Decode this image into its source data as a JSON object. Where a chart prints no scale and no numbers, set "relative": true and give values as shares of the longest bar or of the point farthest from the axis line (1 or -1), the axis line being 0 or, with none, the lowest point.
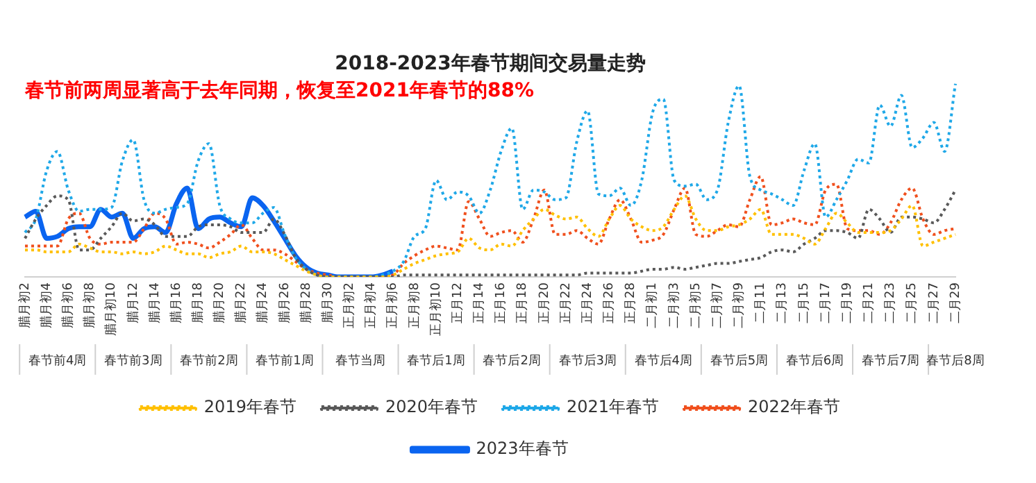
{
  "chart_data": {
    "type": "line",
    "title": "2018-2023年春节期间交易量走势",
    "subtitle": "春节前两周显著高于去年同期，恢复至2021年春节的88%",
    "relative": true,
    "legend": "bottom",
    "categories": [
      "腊月初2",
      null,
      "腊月初4",
      null,
      "腊月初6",
      null,
      "腊月初8",
      null,
      "腊月初10",
      null,
      "腊月12",
      null,
      "腊月14",
      null,
      "腊月16",
      null,
      "腊月18",
      null,
      "腊月20",
      null,
      "腊月22",
      null,
      "腊月24",
      null,
      "腊月26",
      null,
      "腊月28",
      null,
      "腊月30",
      null,
      "正月初2",
      null,
      "正月初4",
      null,
      "正月初6",
      null,
      "正月初8",
      null,
      "正月初10",
      null,
      "正月12",
      null,
      "正月14",
      null,
      "正月16",
      null,
      "正月18",
      null,
      "正月20",
      null,
      "正月22",
      null,
      "正月24",
      null,
      "正月26",
      null,
      "正月28",
      null,
      "二月初1",
      null,
      "二月初3",
      null,
      "二月初5",
      null,
      "二月初7",
      null,
      "二月初9",
      null,
      "二月11",
      null,
      "二月13",
      null,
      "二月15",
      null,
      "二月17",
      null,
      "二月19",
      null,
      "二月21",
      null,
      "二月23",
      null,
      "二月25",
      null,
      "二月27",
      null,
      "二月29"
    ],
    "annotations": [
      "春节前4周",
      "春节前3周",
      "春节前2周",
      "春节前1周",
      "春节当周",
      "春节后1周",
      "春节后2周",
      "春节后3周",
      "春节后4周",
      "春节后5周",
      "春节后6周",
      "春节后7周",
      "春节后8周"
    ],
    "series": [
      {
        "name": "2019年春节",
        "color": "#ffc000",
        "line_style": "dotted",
        "values": [
          0.14,
          0.14,
          0.13,
          0.13,
          0.13,
          0.17,
          0.15,
          0.13,
          0.13,
          0.12,
          0.13,
          0.12,
          0.13,
          0.16,
          0.14,
          0.12,
          0.12,
          0.1,
          0.12,
          0.13,
          0.16,
          0.13,
          0.13,
          0.12,
          0.09,
          0.06,
          0.03,
          0.01,
          0,
          0,
          0,
          0,
          0,
          0,
          0.01,
          0.04,
          0.07,
          0.09,
          0.11,
          0.12,
          0.13,
          0.2,
          0.15,
          0.14,
          0.17,
          0.16,
          0.24,
          0.3,
          0.35,
          0.32,
          0.3,
          0.31,
          0.25,
          0.21,
          0.3,
          0.37,
          0.3,
          0.26,
          0.24,
          0.26,
          0.35,
          0.42,
          0.3,
          0.24,
          0.24,
          0.26,
          0.27,
          0.3,
          0.35,
          0.22,
          0.22,
          0.22,
          0.2,
          0.17,
          0.25,
          0.33,
          0.28,
          0.23,
          0.23,
          0.23,
          0.24,
          0.3,
          0.37,
          0.16,
          0.18,
          0.2,
          0.22
        ]
      },
      {
        "name": "2020年春节",
        "color": "#595959",
        "line_style": "dotted",
        "values": [
          0.2,
          0.3,
          0.37,
          0.42,
          0.4,
          0.14,
          0.14,
          0.2,
          0.26,
          0.33,
          0.29,
          0.3,
          0.27,
          0.21,
          0.21,
          0.21,
          0.26,
          0.27,
          0.27,
          0.26,
          0.23,
          0.23,
          0.23,
          0.3,
          0.22,
          0.1,
          0.04,
          0.01,
          0,
          0,
          0,
          0,
          0,
          0,
          0,
          0.01,
          0.01,
          0.01,
          0.01,
          0.01,
          0.01,
          0.01,
          0.01,
          0.01,
          0.01,
          0.01,
          0.01,
          0.01,
          0.01,
          0.01,
          0.01,
          0.01,
          0.02,
          0.02,
          0.02,
          0.02,
          0.02,
          0.03,
          0.04,
          0.04,
          0.05,
          0.04,
          0.05,
          0.06,
          0.07,
          0.07,
          0.08,
          0.09,
          0.1,
          0.13,
          0.14,
          0.13,
          0.17,
          0.2,
          0.24,
          0.24,
          0.23,
          0.2,
          0.35,
          0.3,
          0.23,
          0.31,
          0.31,
          0.3,
          0.28,
          0.35,
          0.45
        ]
      },
      {
        "name": "2021年春节",
        "color": "#1fa8e8",
        "line_style": "dotted",
        "values": [
          0.23,
          0.3,
          0.55,
          0.65,
          0.45,
          0.34,
          0.35,
          0.35,
          0.36,
          0.6,
          0.71,
          0.4,
          0.33,
          0.35,
          0.36,
          0.38,
          0.6,
          0.69,
          0.37,
          0.3,
          0.28,
          0.28,
          0.33,
          0.36,
          0.22,
          0.1,
          0.04,
          0.01,
          0,
          0,
          0,
          0,
          0,
          0.01,
          0.03,
          0.08,
          0.21,
          0.25,
          0.5,
          0.4,
          0.44,
          0.42,
          0.33,
          0.45,
          0.65,
          0.77,
          0.35,
          0.45,
          0.44,
          0.4,
          0.41,
          0.7,
          0.86,
          0.43,
          0.42,
          0.46,
          0.37,
          0.5,
          0.85,
          0.92,
          0.5,
          0.47,
          0.48,
          0.4,
          0.45,
          0.8,
          0.99,
          0.52,
          0.45,
          0.43,
          0.4,
          0.37,
          0.55,
          0.69,
          0.31,
          0.4,
          0.5,
          0.61,
          0.59,
          0.89,
          0.78,
          0.94,
          0.67,
          0.72,
          0.8,
          0.65,
          1.0
        ]
      },
      {
        "name": "2022年春节",
        "color": "#f0501e",
        "line_style": "dotted",
        "values": [
          0.16,
          0.16,
          0.16,
          0.16,
          0.3,
          0.33,
          0.2,
          0.17,
          0.18,
          0.18,
          0.18,
          0.25,
          0.33,
          0.3,
          0.17,
          0.18,
          0.17,
          0.15,
          0.18,
          0.22,
          0.27,
          0.2,
          0.14,
          0.14,
          0.12,
          0.08,
          0.04,
          0.02,
          0.01,
          0,
          0,
          0,
          0,
          0,
          0.01,
          0.07,
          0.11,
          0.14,
          0.16,
          0.15,
          0.14,
          0.39,
          0.3,
          0.21,
          0.23,
          0.24,
          0.18,
          0.3,
          0.45,
          0.22,
          0.22,
          0.24,
          0.2,
          0.17,
          0.3,
          0.4,
          0.3,
          0.18,
          0.19,
          0.22,
          0.35,
          0.46,
          0.22,
          0.21,
          0.24,
          0.27,
          0.26,
          0.4,
          0.52,
          0.27,
          0.28,
          0.3,
          0.28,
          0.27,
          0.45,
          0.48,
          0.25,
          0.24,
          0.24,
          0.22,
          0.28,
          0.4,
          0.46,
          0.3,
          0.22,
          0.24,
          0.25
        ]
      },
      {
        "name": "2023年春节",
        "color": "#0a64f0",
        "line_style": "solid",
        "values": [
          0.31,
          0.34,
          0.2,
          0.21,
          0.25,
          0.26,
          0.26,
          0.35,
          0.31,
          0.33,
          0.2,
          0.25,
          0.26,
          0.23,
          0.38,
          0.46,
          0.25,
          0.3,
          0.31,
          0.28,
          0.26,
          0.41,
          0.37,
          0.29,
          0.2,
          0.11,
          0.05,
          0.02,
          0.01,
          0,
          0,
          0,
          0,
          0.01,
          0.03,
          null,
          null,
          null,
          null,
          null,
          null,
          null,
          null,
          null,
          null,
          null,
          null,
          null,
          null,
          null,
          null,
          null,
          null,
          null,
          null,
          null,
          null,
          null,
          null,
          null,
          null,
          null,
          null,
          null,
          null,
          null,
          null,
          null,
          null,
          null,
          null,
          null,
          null,
          null,
          null,
          null,
          null,
          null,
          null,
          null,
          null,
          null,
          null,
          null,
          null,
          null,
          null
        ]
      }
    ]
  }
}
